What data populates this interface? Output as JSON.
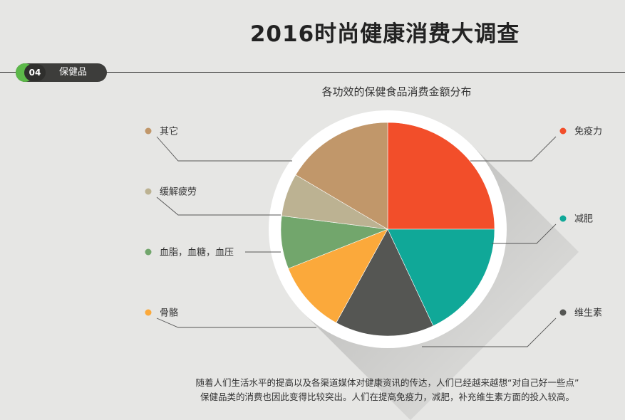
{
  "header": {
    "title": "2016时尚健康消费大调查",
    "section_number": "04",
    "section_label": "保健品"
  },
  "caption": {
    "line1": "随着人们生活水平的提高以及各渠道媒体对健康资讯的传达，人们已经越来越想“对自己好一些点”",
    "line2": "保健品类的消费也因此变得比较突出。人们在提高免疫力，减肥，补充维生素方面的投入较高。"
  },
  "chart_data": {
    "type": "pie",
    "title": "各功效的保健食品消费金额分布",
    "slices": [
      {
        "name": "免疫力",
        "value": 25,
        "color": "#f24e2a"
      },
      {
        "name": "减肥",
        "value": 18,
        "color": "#10a898"
      },
      {
        "name": "维生素",
        "value": 15,
        "color": "#555653"
      },
      {
        "name": "骨骼",
        "value": 11,
        "color": "#fba93b"
      },
      {
        "name": "血脂，血糖，血压",
        "value": 8,
        "color": "#72a66c"
      },
      {
        "name": "缓解疲劳",
        "value": 6.5,
        "color": "#bcb292"
      },
      {
        "name": "其它",
        "value": 16.5,
        "color": "#c1976a"
      }
    ],
    "legend_placement": "around",
    "grid": false
  }
}
